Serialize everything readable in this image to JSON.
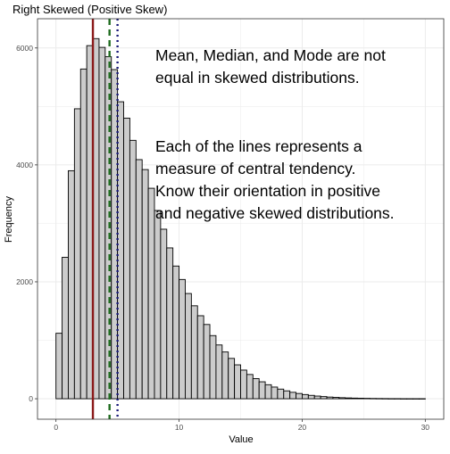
{
  "chart_data": {
    "type": "bar",
    "title": "Right Skewed (Positive Skew)",
    "xlabel": "Value",
    "ylabel": "Frequency",
    "xlim": [
      -1.5,
      31.5
    ],
    "ylim": [
      -350,
      6500
    ],
    "x_ticks": [
      0,
      10,
      20,
      30
    ],
    "y_ticks": [
      0,
      2000,
      4000,
      6000
    ],
    "x_tick_labels": [
      "0",
      "10",
      "20",
      "30"
    ],
    "y_tick_labels": [
      "0",
      "2000",
      "4000",
      "6000"
    ],
    "grid": true,
    "bin_width": 0.5,
    "bins": [
      {
        "x": 0.25,
        "count": 1120
      },
      {
        "x": 0.75,
        "count": 2420
      },
      {
        "x": 1.25,
        "count": 3900
      },
      {
        "x": 1.75,
        "count": 4960
      },
      {
        "x": 2.25,
        "count": 5640
      },
      {
        "x": 2.75,
        "count": 6040
      },
      {
        "x": 3.25,
        "count": 6160
      },
      {
        "x": 3.75,
        "count": 6010
      },
      {
        "x": 4.25,
        "count": 5850
      },
      {
        "x": 4.75,
        "count": 5630
      },
      {
        "x": 5.25,
        "count": 5080
      },
      {
        "x": 5.75,
        "count": 4800
      },
      {
        "x": 6.25,
        "count": 4420
      },
      {
        "x": 6.75,
        "count": 4090
      },
      {
        "x": 7.25,
        "count": 3920
      },
      {
        "x": 7.75,
        "count": 3600
      },
      {
        "x": 8.25,
        "count": 3220
      },
      {
        "x": 8.75,
        "count": 2900
      },
      {
        "x": 9.25,
        "count": 2580
      },
      {
        "x": 9.75,
        "count": 2270
      },
      {
        "x": 10.25,
        "count": 2040
      },
      {
        "x": 10.75,
        "count": 1800
      },
      {
        "x": 11.25,
        "count": 1590
      },
      {
        "x": 11.75,
        "count": 1420
      },
      {
        "x": 12.25,
        "count": 1270
      },
      {
        "x": 12.75,
        "count": 1080
      },
      {
        "x": 13.25,
        "count": 920
      },
      {
        "x": 13.75,
        "count": 800
      },
      {
        "x": 14.25,
        "count": 690
      },
      {
        "x": 14.75,
        "count": 580
      },
      {
        "x": 15.25,
        "count": 490
      },
      {
        "x": 15.75,
        "count": 415
      },
      {
        "x": 16.25,
        "count": 345
      },
      {
        "x": 16.75,
        "count": 290
      },
      {
        "x": 17.25,
        "count": 240
      },
      {
        "x": 17.75,
        "count": 200
      },
      {
        "x": 18.25,
        "count": 165
      },
      {
        "x": 18.75,
        "count": 135
      },
      {
        "x": 19.25,
        "count": 110
      },
      {
        "x": 19.75,
        "count": 90
      },
      {
        "x": 20.25,
        "count": 72
      },
      {
        "x": 20.75,
        "count": 58
      },
      {
        "x": 21.25,
        "count": 46
      },
      {
        "x": 21.75,
        "count": 37
      },
      {
        "x": 22.25,
        "count": 29
      },
      {
        "x": 22.75,
        "count": 23
      },
      {
        "x": 23.25,
        "count": 18
      },
      {
        "x": 23.75,
        "count": 14
      },
      {
        "x": 24.25,
        "count": 11
      },
      {
        "x": 24.75,
        "count": 9
      },
      {
        "x": 25.25,
        "count": 7
      },
      {
        "x": 25.75,
        "count": 5
      },
      {
        "x": 26.25,
        "count": 4
      },
      {
        "x": 26.75,
        "count": 3
      },
      {
        "x": 27.25,
        "count": 2
      },
      {
        "x": 27.75,
        "count": 2
      },
      {
        "x": 28.25,
        "count": 1
      },
      {
        "x": 28.75,
        "count": 1
      },
      {
        "x": 29.25,
        "count": 1
      },
      {
        "x": 29.75,
        "count": 1
      }
    ],
    "reference_lines": [
      {
        "name": "mode",
        "value": 3.0,
        "color": "#8b1a1a",
        "style": "solid"
      },
      {
        "name": "median",
        "value": 4.35,
        "color": "#1e6b1e",
        "style": "dashed"
      },
      {
        "name": "mean",
        "value": 5.0,
        "color": "#1a1a7a",
        "style": "dotted"
      }
    ],
    "annotations": [
      {
        "id": "note1",
        "lines": [
          "Mean, Median, and Mode are not",
          "equal in skewed distributions."
        ]
      },
      {
        "id": "note2",
        "lines": [
          "Each of the lines represents a",
          "measure of central tendency.",
          "Know their orientation in positive",
          "and negative skewed distributions."
        ]
      }
    ],
    "colors": {
      "bar_fill": "#cccccc",
      "bar_stroke": "#000000",
      "grid": "#ebebeb",
      "panel_border": "#333333"
    }
  }
}
